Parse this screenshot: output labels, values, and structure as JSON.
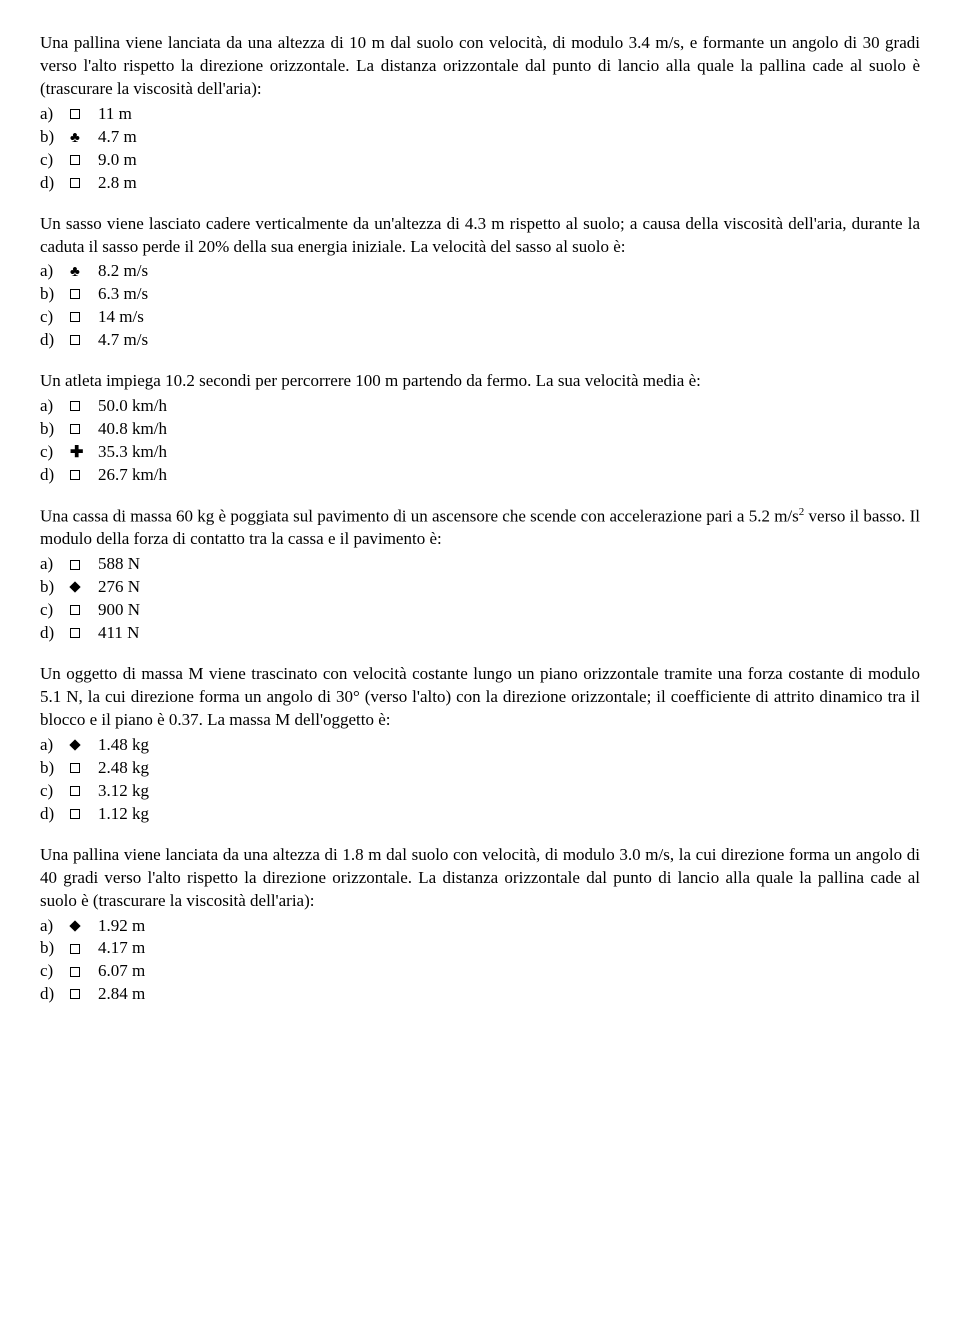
{
  "questions": [
    {
      "text": "Una pallina viene lanciata da una altezza di 10 m dal suolo con velocità, di modulo 3.4 m/s, e formante un angolo di 30 gradi verso l'alto rispetto la direzione orizzontale. La distanza orizzontale dal punto di lancio alla quale la pallina cade al suolo è (trascurare la viscosità dell'aria):",
      "options": [
        {
          "letter": "a)",
          "marker": "empty",
          "text": "11 m"
        },
        {
          "letter": "b)",
          "marker": "club",
          "text": "4.7 m"
        },
        {
          "letter": "c)",
          "marker": "empty",
          "text": "9.0 m"
        },
        {
          "letter": "d)",
          "marker": "empty",
          "text": "2.8 m"
        }
      ]
    },
    {
      "text": "Un sasso viene lasciato cadere verticalmente da un'altezza di 4.3 m rispetto al suolo; a causa della viscosità dell'aria, durante la caduta il sasso perde il 20% della sua energia iniziale. La velocità del sasso al suolo è:",
      "options": [
        {
          "letter": "a)",
          "marker": "club",
          "text": "8.2 m/s"
        },
        {
          "letter": "b)",
          "marker": "empty",
          "text": "6.3 m/s"
        },
        {
          "letter": "c)",
          "marker": "empty",
          "text": "14 m/s"
        },
        {
          "letter": "d)",
          "marker": "empty",
          "text": "4.7 m/s"
        }
      ]
    },
    {
      "text": "Un atleta impiega 10.2 secondi per percorrere 100 m partendo da fermo. La sua velocità media è:",
      "options": [
        {
          "letter": "a)",
          "marker": "empty",
          "text": "50.0 km/h"
        },
        {
          "letter": "b)",
          "marker": "empty",
          "text": "40.8 km/h"
        },
        {
          "letter": "c)",
          "marker": "cross",
          "text": "35.3 km/h"
        },
        {
          "letter": "d)",
          "marker": "empty",
          "text": "26.7 km/h"
        }
      ]
    },
    {
      "text_html": "Una cassa di massa 60 kg è poggiata sul pavimento di un ascensore che scende con accelerazione pari a 5.2 m/s<sup>2</sup> verso il basso. Il modulo della forza di contatto tra la cassa e il pavimento è:",
      "options": [
        {
          "letter": "a)",
          "marker": "empty",
          "text": "588 N"
        },
        {
          "letter": "b)",
          "marker": "diamond",
          "text": "276 N"
        },
        {
          "letter": "c)",
          "marker": "empty",
          "text": "900 N"
        },
        {
          "letter": "d)",
          "marker": "empty",
          "text": "411 N"
        }
      ]
    },
    {
      "text": "Un oggetto di massa M viene trascinato con velocità costante lungo un piano orizzontale tramite una forza costante di modulo 5.1 N, la cui direzione forma un angolo di 30° (verso l'alto) con la direzione orizzontale; il coefficiente di attrito dinamico tra il blocco e il piano è 0.37. La massa M dell'oggetto è:",
      "options": [
        {
          "letter": "a)",
          "marker": "diamond",
          "text": "1.48 kg"
        },
        {
          "letter": "b)",
          "marker": "empty",
          "text": "2.48 kg"
        },
        {
          "letter": "c)",
          "marker": "empty",
          "text": "3.12 kg"
        },
        {
          "letter": "d)",
          "marker": "empty",
          "text": "1.12 kg"
        }
      ]
    },
    {
      "text": "Una pallina viene lanciata da una altezza di 1.8 m dal suolo con velocità, di modulo 3.0 m/s, la cui direzione forma un angolo di 40 gradi verso l'alto rispetto la direzione orizzontale. La distanza orizzontale dal punto di lancio alla quale la pallina cade al suolo è (trascurare la viscosità dell'aria):",
      "options": [
        {
          "letter": "a)",
          "marker": "diamond",
          "text": "1.92 m"
        },
        {
          "letter": "b)",
          "marker": "empty",
          "text": "4.17 m"
        },
        {
          "letter": "c)",
          "marker": "empty",
          "text": "6.07 m"
        },
        {
          "letter": "d)",
          "marker": "empty",
          "text": "2.84 m"
        }
      ]
    }
  ],
  "marker_symbols": {
    "club": "♣",
    "cross": "✚"
  }
}
